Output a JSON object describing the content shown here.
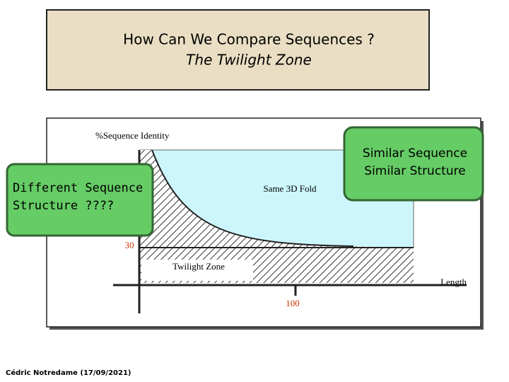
{
  "header": {
    "title": "How Can We Compare Sequences ?",
    "subtitle": "The Twilight Zone"
  },
  "diagram": {
    "y_axis_label": "%Sequence Identity",
    "x_axis_label": "Length",
    "threshold_label": "30",
    "length_label": "100",
    "same_fold_label": "Same 3D Fold",
    "twilight_label": "Twilight Zone"
  },
  "callouts": {
    "left": [
      "Different Sequence",
      "Structure ????"
    ],
    "right": [
      "Similar Sequence",
      "Similar Structure"
    ]
  },
  "footer": "Cédric Notredame (17/09/2021)"
}
